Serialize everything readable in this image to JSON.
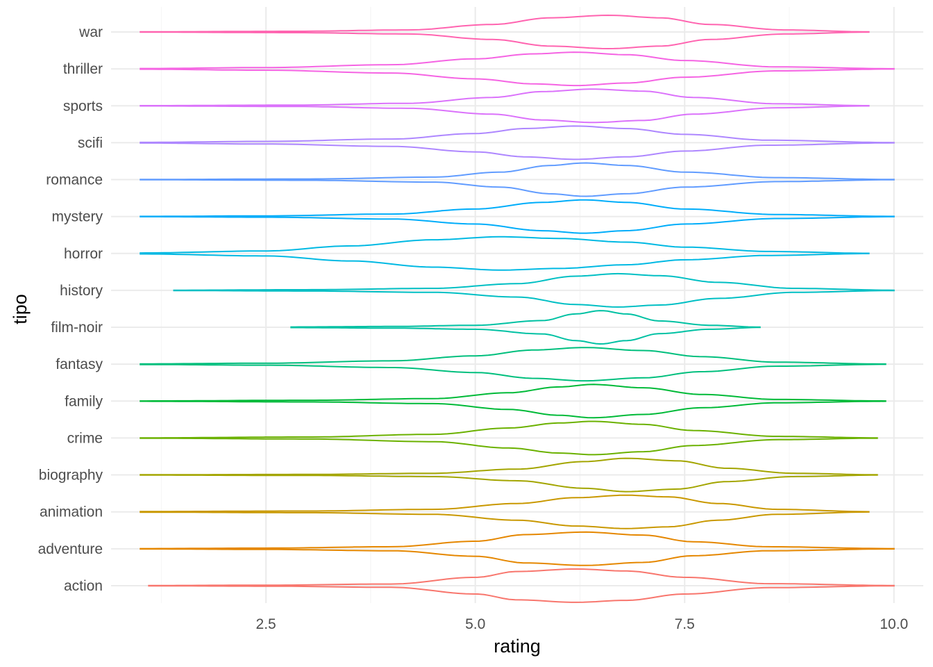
{
  "chart_data": {
    "type": "violin",
    "title": "",
    "xlabel": "rating",
    "ylabel": "tipo",
    "xlim": [
      0.65,
      10.35
    ],
    "x_ticks": [
      2.5,
      5.0,
      7.5,
      10.0
    ],
    "x_tick_labels": [
      "2.5",
      "5.0",
      "7.5",
      "10.0"
    ],
    "grid": true,
    "legend": "none",
    "categories": [
      "action",
      "adventure",
      "animation",
      "biography",
      "crime",
      "family",
      "fantasy",
      "film-noir",
      "history",
      "horror",
      "mystery",
      "romance",
      "scifi",
      "sports",
      "thriller",
      "war"
    ],
    "series": [
      {
        "category": "action",
        "color": "#F8766D",
        "min": 1.1,
        "max": 10.0,
        "profile": [
          [
            1.1,
            0.01
          ],
          [
            2.5,
            0.03
          ],
          [
            4.0,
            0.1
          ],
          [
            5.0,
            0.5
          ],
          [
            5.5,
            0.85
          ],
          [
            6.2,
            1.0
          ],
          [
            6.8,
            0.88
          ],
          [
            7.5,
            0.5
          ],
          [
            8.5,
            0.12
          ],
          [
            10.0,
            0.01
          ]
        ]
      },
      {
        "category": "adventure",
        "color": "#E58700",
        "min": 1.0,
        "max": 10.0,
        "profile": [
          [
            1.0,
            0.01
          ],
          [
            2.5,
            0.04
          ],
          [
            4.0,
            0.12
          ],
          [
            5.0,
            0.45
          ],
          [
            5.6,
            0.85
          ],
          [
            6.3,
            1.0
          ],
          [
            7.0,
            0.82
          ],
          [
            7.6,
            0.42
          ],
          [
            8.5,
            0.12
          ],
          [
            10.0,
            0.01
          ]
        ]
      },
      {
        "category": "animation",
        "color": "#C99800",
        "min": 1.0,
        "max": 9.7,
        "profile": [
          [
            1.0,
            0.02
          ],
          [
            3.0,
            0.05
          ],
          [
            4.5,
            0.15
          ],
          [
            5.5,
            0.5
          ],
          [
            6.2,
            0.85
          ],
          [
            6.8,
            1.0
          ],
          [
            7.3,
            0.9
          ],
          [
            7.9,
            0.5
          ],
          [
            8.6,
            0.15
          ],
          [
            9.7,
            0.01
          ]
        ]
      },
      {
        "category": "biography",
        "color": "#A3A500",
        "min": 1.0,
        "max": 9.8,
        "profile": [
          [
            1.0,
            0.01
          ],
          [
            3.0,
            0.03
          ],
          [
            4.5,
            0.1
          ],
          [
            5.5,
            0.35
          ],
          [
            6.3,
            0.8
          ],
          [
            6.8,
            1.0
          ],
          [
            7.4,
            0.85
          ],
          [
            8.0,
            0.4
          ],
          [
            8.8,
            0.1
          ],
          [
            9.8,
            0.01
          ]
        ]
      },
      {
        "category": "crime",
        "color": "#6BB100",
        "min": 1.0,
        "max": 9.8,
        "profile": [
          [
            1.0,
            0.01
          ],
          [
            3.0,
            0.06
          ],
          [
            4.5,
            0.22
          ],
          [
            5.4,
            0.6
          ],
          [
            6.0,
            0.9
          ],
          [
            6.4,
            1.0
          ],
          [
            7.0,
            0.82
          ],
          [
            7.6,
            0.45
          ],
          [
            8.6,
            0.1
          ],
          [
            9.8,
            0.01
          ]
        ]
      },
      {
        "category": "family",
        "color": "#00BA38",
        "min": 1.0,
        "max": 9.9,
        "profile": [
          [
            1.0,
            0.01
          ],
          [
            3.0,
            0.05
          ],
          [
            4.5,
            0.15
          ],
          [
            5.4,
            0.5
          ],
          [
            6.0,
            0.85
          ],
          [
            6.4,
            1.0
          ],
          [
            7.0,
            0.8
          ],
          [
            7.7,
            0.4
          ],
          [
            8.6,
            0.1
          ],
          [
            9.9,
            0.01
          ]
        ]
      },
      {
        "category": "fantasy",
        "color": "#00BF7D",
        "min": 1.0,
        "max": 9.9,
        "profile": [
          [
            1.0,
            0.02
          ],
          [
            2.5,
            0.06
          ],
          [
            4.0,
            0.2
          ],
          [
            5.0,
            0.5
          ],
          [
            5.7,
            0.85
          ],
          [
            6.3,
            1.0
          ],
          [
            7.0,
            0.82
          ],
          [
            7.7,
            0.45
          ],
          [
            8.6,
            0.12
          ],
          [
            9.9,
            0.01
          ]
        ]
      },
      {
        "category": "film-noir",
        "color": "#00C1A3",
        "min": 2.8,
        "max": 8.4,
        "profile": [
          [
            2.8,
            0.02
          ],
          [
            4.0,
            0.05
          ],
          [
            5.0,
            0.12
          ],
          [
            5.8,
            0.4
          ],
          [
            6.2,
            0.8
          ],
          [
            6.5,
            1.0
          ],
          [
            6.8,
            0.8
          ],
          [
            7.2,
            0.38
          ],
          [
            7.8,
            0.12
          ],
          [
            8.4,
            0.01
          ]
        ]
      },
      {
        "category": "history",
        "color": "#00BFC4",
        "min": 1.4,
        "max": 10.0,
        "profile": [
          [
            1.4,
            0.01
          ],
          [
            3.0,
            0.04
          ],
          [
            4.5,
            0.12
          ],
          [
            5.5,
            0.4
          ],
          [
            6.2,
            0.85
          ],
          [
            6.7,
            1.0
          ],
          [
            7.2,
            0.88
          ],
          [
            7.9,
            0.48
          ],
          [
            8.8,
            0.12
          ],
          [
            10.0,
            0.01
          ]
        ]
      },
      {
        "category": "horror",
        "color": "#00B9E3",
        "min": 1.0,
        "max": 9.7,
        "profile": [
          [
            1.0,
            0.03
          ],
          [
            2.5,
            0.15
          ],
          [
            3.5,
            0.45
          ],
          [
            4.5,
            0.82
          ],
          [
            5.3,
            1.0
          ],
          [
            6.0,
            0.9
          ],
          [
            6.8,
            0.68
          ],
          [
            7.5,
            0.38
          ],
          [
            8.5,
            0.12
          ],
          [
            9.7,
            0.01
          ]
        ]
      },
      {
        "category": "mystery",
        "color": "#00ADFA",
        "min": 1.0,
        "max": 10.0,
        "profile": [
          [
            1.0,
            0.01
          ],
          [
            2.5,
            0.04
          ],
          [
            4.0,
            0.15
          ],
          [
            5.0,
            0.45
          ],
          [
            5.8,
            0.85
          ],
          [
            6.3,
            1.0
          ],
          [
            6.8,
            0.85
          ],
          [
            7.5,
            0.45
          ],
          [
            8.6,
            0.12
          ],
          [
            10.0,
            0.01
          ]
        ]
      },
      {
        "category": "romance",
        "color": "#619CFF",
        "min": 1.0,
        "max": 10.0,
        "profile": [
          [
            1.0,
            0.01
          ],
          [
            3.0,
            0.04
          ],
          [
            4.5,
            0.15
          ],
          [
            5.3,
            0.45
          ],
          [
            5.9,
            0.85
          ],
          [
            6.3,
            1.0
          ],
          [
            6.8,
            0.85
          ],
          [
            7.5,
            0.45
          ],
          [
            8.6,
            0.12
          ],
          [
            10.0,
            0.01
          ]
        ]
      },
      {
        "category": "scifi",
        "color": "#AE87FF",
        "min": 1.0,
        "max": 10.0,
        "profile": [
          [
            1.0,
            0.02
          ],
          [
            2.5,
            0.08
          ],
          [
            4.0,
            0.22
          ],
          [
            5.0,
            0.55
          ],
          [
            5.6,
            0.85
          ],
          [
            6.2,
            1.0
          ],
          [
            6.8,
            0.85
          ],
          [
            7.5,
            0.5
          ],
          [
            8.5,
            0.15
          ],
          [
            10.0,
            0.01
          ]
        ]
      },
      {
        "category": "sports",
        "color": "#DB72FB",
        "min": 1.0,
        "max": 9.7,
        "profile": [
          [
            1.0,
            0.01
          ],
          [
            2.8,
            0.04
          ],
          [
            4.2,
            0.15
          ],
          [
            5.2,
            0.5
          ],
          [
            5.8,
            0.85
          ],
          [
            6.4,
            1.0
          ],
          [
            7.0,
            0.88
          ],
          [
            7.6,
            0.5
          ],
          [
            8.6,
            0.12
          ],
          [
            9.7,
            0.01
          ]
        ]
      },
      {
        "category": "thriller",
        "color": "#F564E3",
        "min": 1.0,
        "max": 10.0,
        "profile": [
          [
            1.0,
            0.02
          ],
          [
            2.5,
            0.08
          ],
          [
            4.0,
            0.25
          ],
          [
            5.0,
            0.6
          ],
          [
            5.7,
            0.9
          ],
          [
            6.2,
            1.0
          ],
          [
            6.8,
            0.85
          ],
          [
            7.5,
            0.5
          ],
          [
            8.6,
            0.12
          ],
          [
            10.0,
            0.01
          ]
        ]
      },
      {
        "category": "war",
        "color": "#FF64B0",
        "min": 1.0,
        "max": 9.7,
        "profile": [
          [
            1.0,
            0.01
          ],
          [
            2.8,
            0.04
          ],
          [
            4.2,
            0.12
          ],
          [
            5.2,
            0.45
          ],
          [
            5.9,
            0.85
          ],
          [
            6.6,
            1.0
          ],
          [
            7.2,
            0.85
          ],
          [
            7.8,
            0.45
          ],
          [
            8.7,
            0.12
          ],
          [
            9.7,
            0.01
          ]
        ]
      }
    ]
  }
}
